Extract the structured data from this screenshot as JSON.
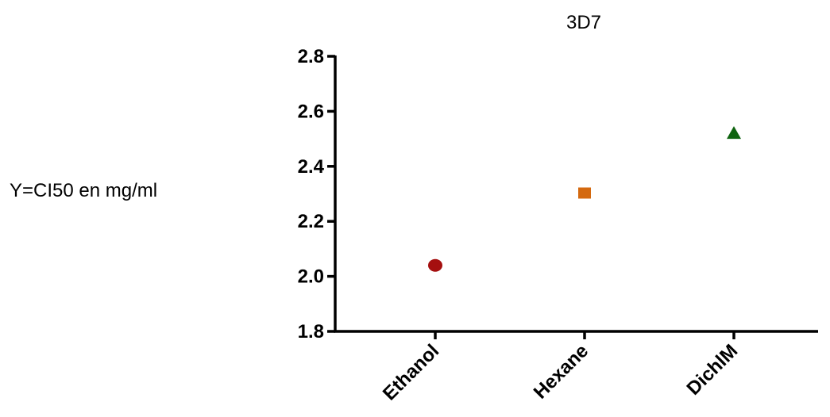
{
  "chart_data": {
    "type": "scatter",
    "title": "3D7",
    "xlabel": "",
    "ylabel": "Y=CI50 en mg/ml",
    "categories": [
      "Ethanol",
      "Hexane",
      "DichlM"
    ],
    "series": [
      {
        "category": "Ethanol",
        "y": 2.04,
        "marker": "circle",
        "color": "#a50f0f"
      },
      {
        "category": "Hexane",
        "y": 2.3,
        "marker": "square",
        "color": "#d4690f"
      },
      {
        "category": "DichlM",
        "y": 2.52,
        "marker": "triangle",
        "color": "#0f6410"
      }
    ],
    "ylim": [
      1.8,
      2.8
    ],
    "yticks": [
      "1.8",
      "2.0",
      "2.2",
      "2.4",
      "2.6",
      "2.8"
    ],
    "grid": false
  }
}
